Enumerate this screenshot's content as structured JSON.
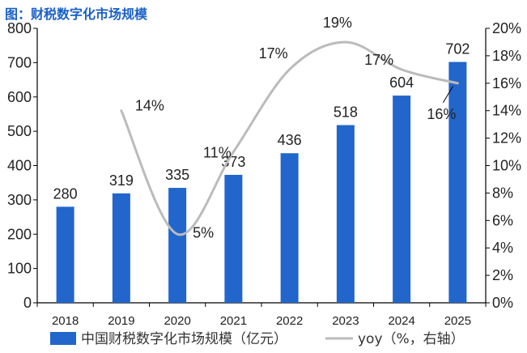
{
  "title": "图：财税数字化市场规模",
  "chart_data": {
    "type": "bar",
    "categories": [
      "2018",
      "2019",
      "2020",
      "2021",
      "2022",
      "2023",
      "2024",
      "2025"
    ],
    "series": [
      {
        "name": "中国财税数字化市场规模（亿元）",
        "type": "bar",
        "axis": "left",
        "values": [
          280,
          319,
          335,
          373,
          436,
          518,
          604,
          702
        ],
        "color": "#2266cc"
      },
      {
        "name": "yoy（%，右轴）",
        "type": "line",
        "axis": "right",
        "values": [
          null,
          14,
          5,
          11,
          17,
          19,
          17,
          16
        ],
        "color": "#bbbbbb"
      }
    ],
    "y_left": {
      "min": 0,
      "max": 800,
      "ticks": [
        "0",
        "100",
        "200",
        "300",
        "400",
        "500",
        "600",
        "700",
        "800"
      ]
    },
    "y_right": {
      "min": 0,
      "max": 20,
      "ticks": [
        "0%",
        "2%",
        "4%",
        "6%",
        "8%",
        "10%",
        "12%",
        "14%",
        "16%",
        "18%",
        "20%"
      ]
    },
    "bar_labels": [
      "280",
      "319",
      "335",
      "373",
      "436",
      "518",
      "604",
      "702"
    ],
    "line_labels": [
      "14%",
      "5%",
      "11%",
      "17%",
      "19%",
      "17%",
      "16%"
    ],
    "legend_placement": "bottom",
    "grid": false
  }
}
